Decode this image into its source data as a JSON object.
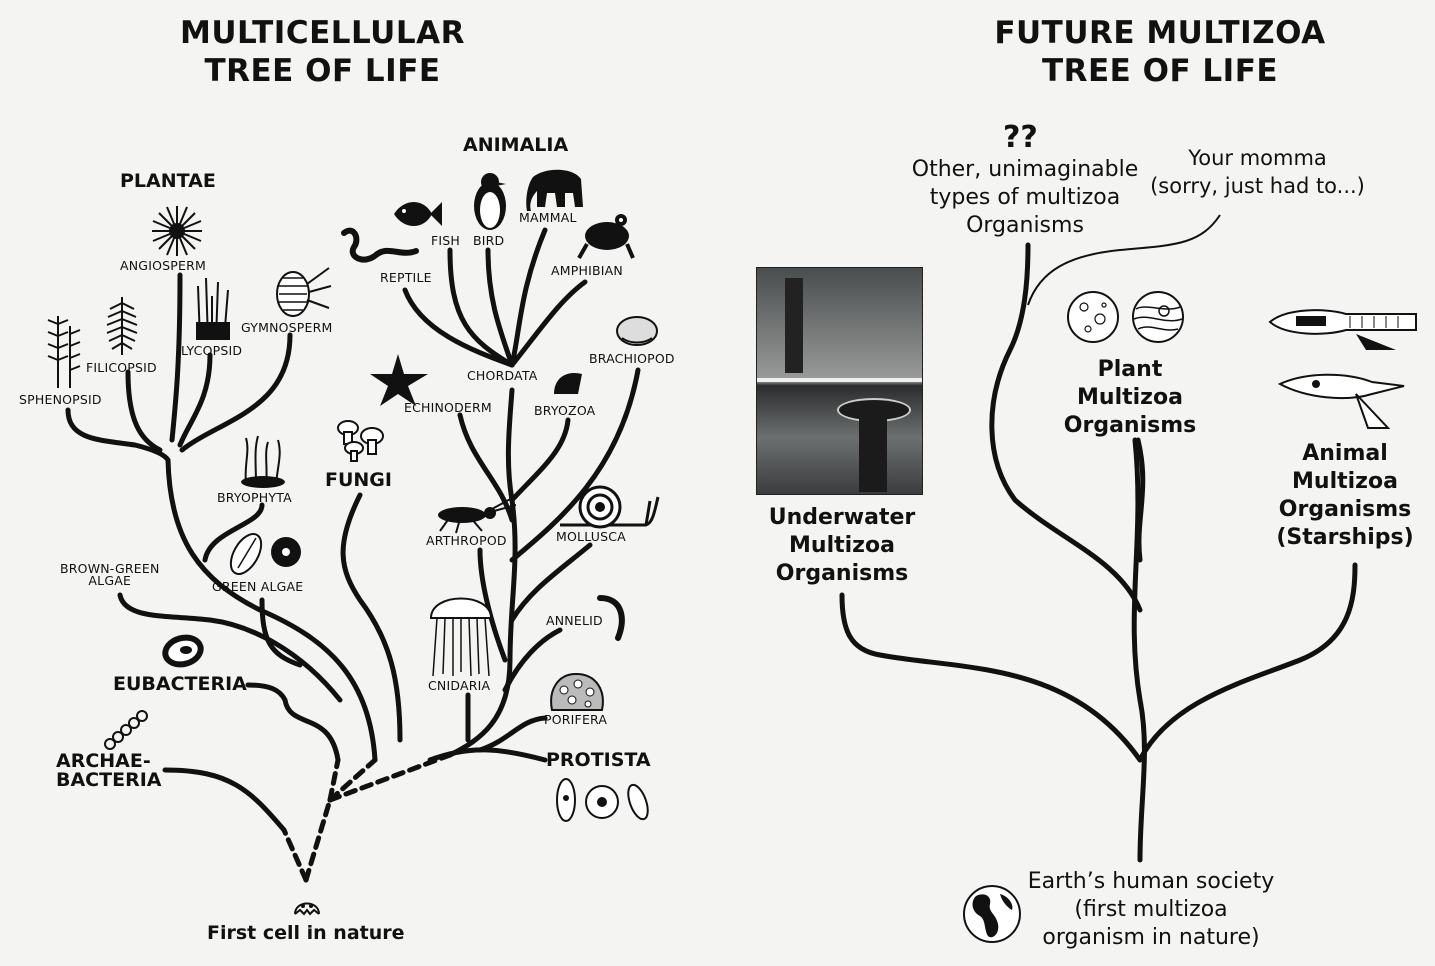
{
  "left_title": [
    "MULTICELLULAR",
    "TREE OF LIFE"
  ],
  "right_title": [
    "FUTURE MULTIZOA",
    "TREE OF LIFE"
  ],
  "kingdoms": {
    "plantae": "PLANTAE",
    "animalia": "ANIMALIA",
    "fungi": "FUNGI",
    "eubacteria": "EUBACTERIA",
    "archaebacteria": [
      "ARCHAE-",
      "BACTERIA"
    ],
    "protista": "PROTISTA"
  },
  "plant_groups": {
    "angiosperm": "ANGIOSPERM",
    "gymnosperm": "GYMNOSPERM",
    "lycopsid": "LYCOPSID",
    "filicopsid": "FILICOPSID",
    "sphenopsid": "SPHENOPSID",
    "bryophyta": "BRYOPHYTA",
    "green_algae": "GREEN ALGAE",
    "brown_green_algae": [
      "BROWN-GREEN",
      "ALGAE"
    ]
  },
  "animal_groups": {
    "mammal": "MAMMAL",
    "bird": "BIRD",
    "fish": "FISH",
    "reptile": "REPTILE",
    "amphibian": "AMPHIBIAN",
    "chordata": "CHORDATA",
    "brachiopod": "BRACHIOPOD",
    "echinoderm": "ECHINODERM",
    "bryozoa": "BRYOZOA",
    "arthropod": "ARTHROPOD",
    "mollusca": "MOLLUSCA",
    "annelid": "ANNELID",
    "cnidaria": "CNIDARIA",
    "porifera": "PORIFERA"
  },
  "root_label": "First cell in nature",
  "future": {
    "unknown_mark": "??",
    "unknown": [
      "Other, unimaginable",
      "types of multizoa",
      "Organisms"
    ],
    "momma": [
      "Your momma",
      "(sorry, just had to...)"
    ],
    "underwater": [
      "Underwater",
      "Multizoa",
      "Organisms"
    ],
    "plant": [
      "Plant",
      "Multizoa",
      "Organisms"
    ],
    "animal": [
      "Animal",
      "Multizoa",
      "Organisms",
      "(Starships)"
    ],
    "root": [
      "Earth’s human society",
      "(first multizoa",
      "organism in nature)"
    ]
  },
  "colors": {
    "ink": "#111111",
    "paper": "#f4f4f2"
  }
}
